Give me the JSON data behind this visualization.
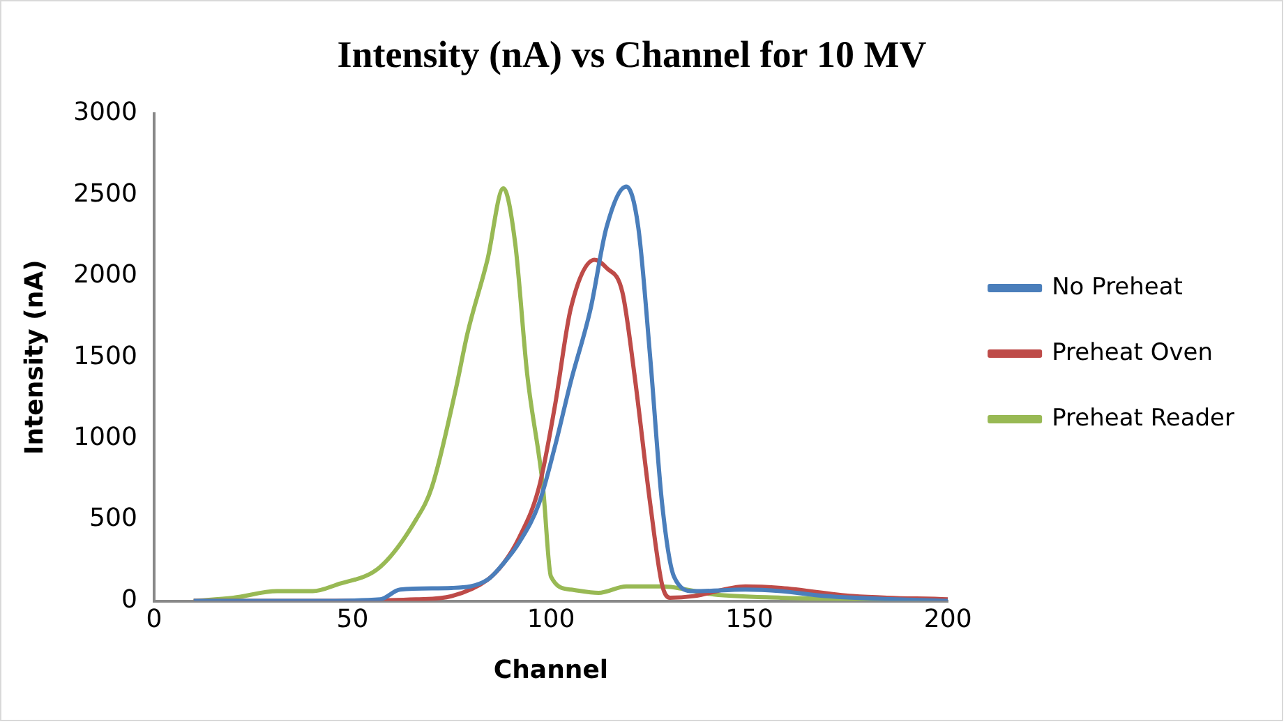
{
  "chart_data": {
    "type": "line",
    "title": "Intensity (nA) vs Channel for 10 MV",
    "xlabel": "Channel",
    "ylabel": "Intensity (nA)",
    "xlim": [
      0,
      200
    ],
    "xticks": [
      0,
      50,
      100,
      150,
      200
    ],
    "ylim": [
      0,
      3000
    ],
    "yticks": [
      0,
      500,
      1000,
      1500,
      2000,
      2500,
      3000
    ],
    "grid": false,
    "legend": "right",
    "marker": "none",
    "series": [
      {
        "name": "No Preheat",
        "color": "#4a7ebb",
        "x": [
          10,
          40,
          57,
          62,
          75,
          84,
          88,
          92,
          97,
          101,
          105,
          110,
          114,
          119,
          122,
          125,
          128,
          131,
          136,
          149,
          158,
          169,
          200
        ],
        "values": [
          0,
          0,
          10,
          70,
          80,
          130,
          230,
          360,
          600,
          950,
          1350,
          1800,
          2300,
          2550,
          2300,
          1500,
          600,
          150,
          60,
          70,
          60,
          30,
          0
        ]
      },
      {
        "name": "Preheat Oven",
        "color": "#be4b48",
        "x": [
          10,
          40,
          66,
          75,
          84,
          88,
          92,
          97,
          101,
          105,
          111,
          114,
          118,
          121,
          125,
          128,
          130,
          136,
          149,
          158,
          176,
          200
        ],
        "values": [
          0,
          0,
          10,
          30,
          130,
          230,
          390,
          700,
          1200,
          1800,
          2100,
          2050,
          1900,
          1400,
          600,
          100,
          20,
          30,
          90,
          80,
          30,
          10
        ]
      },
      {
        "name": "Preheat Reader",
        "color": "#98b954",
        "x": [
          10,
          20,
          31,
          40,
          46,
          57,
          66,
          70,
          76,
          79,
          84,
          88,
          91,
          94,
          98,
          100,
          105,
          112,
          119,
          128,
          141,
          158,
          200
        ],
        "values": [
          0,
          20,
          60,
          60,
          100,
          210,
          500,
          700,
          1300,
          1650,
          2100,
          2540,
          2200,
          1400,
          700,
          150,
          70,
          50,
          90,
          90,
          40,
          20,
          0
        ]
      }
    ]
  }
}
